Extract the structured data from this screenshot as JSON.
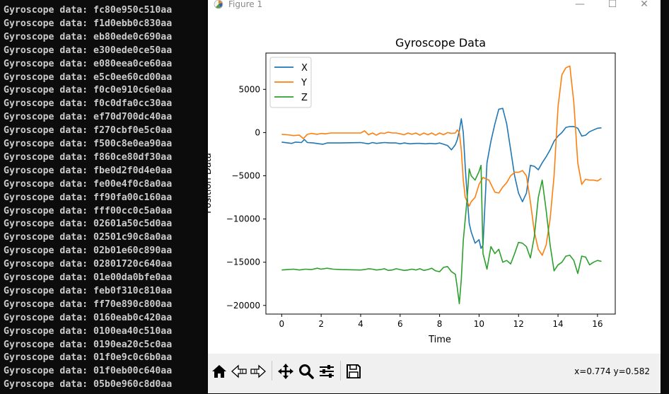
{
  "terminal": {
    "lines": [
      "Gyroscope data: fc80e950c510aa",
      "Gyroscope data: f1d0ebb0c830aa",
      "Gyroscope data: eb80ede0c690aa",
      "Gyroscope data: e300ede0ce50aa",
      "Gyroscope data: e080eea0ce60aa",
      "Gyroscope data: e5c0ee60cd00aa",
      "Gyroscope data: f0c0e910c6e0aa",
      "Gyroscope data: f0c0dfa0cc30aa",
      "Gyroscope data: ef70d700dc40aa",
      "Gyroscope data: f270cbf0e5c0aa",
      "Gyroscope data: f500c8e0ea90aa",
      "Gyroscope data: f860ce80df30aa",
      "Gyroscope data: fbe0d2f0d4e0aa",
      "Gyroscope data: fe00e4f0c8a0aa",
      "Gyroscope data: ff90fa00c160aa",
      "Gyroscope data: fff00cc0c5a0aa",
      "Gyroscope data: 02601a50c5d0aa",
      "Gyroscope data: 02501c90c8a0aa",
      "Gyroscope data: 02b01e60c890aa",
      "Gyroscope data: 02801720c640aa",
      "Gyroscope data: 01e00da0bfe0aa",
      "Gyroscope data: feb0f310c810aa",
      "Gyroscope data: ff70e890c800aa",
      "Gyroscope data: 0160eab0c420aa",
      "Gyroscope data: 0100ea40c510aa",
      "Gyroscope data: 0190ea20c5c0aa",
      "Gyroscope data: 01f0e9c0c6b0aa",
      "Gyroscope data: 01f0eb00c640aa",
      "Gyroscope data: 05b0e960c8d0aa"
    ]
  },
  "window": {
    "title": "Figure 1",
    "minimize_glyph": "—",
    "maximize_glyph": "☐",
    "close_glyph": "✕"
  },
  "toolbar": {
    "buttons": [
      "home-icon",
      "back-icon",
      "forward-icon",
      "pan-icon",
      "zoom-icon",
      "configure-subplots-icon",
      "save-icon"
    ],
    "coords": "x=0.774 y=0.582"
  },
  "chart_data": {
    "type": "line",
    "title": "Gyroscope Data",
    "xlabel": "Time",
    "ylabel": "Position Data",
    "xlim": [
      -0.8,
      16.9
    ],
    "ylim": [
      -21000,
      9200
    ],
    "xticks": [
      0,
      2,
      4,
      6,
      8,
      10,
      12,
      14,
      16
    ],
    "yticks": [
      -20000,
      -15000,
      -10000,
      -5000,
      0,
      5000
    ],
    "ytick_labels": [
      "−20000",
      "−15000",
      "−10000",
      "−5000",
      "0",
      "5000"
    ],
    "legend_position": "top-left",
    "grid": false,
    "series": [
      {
        "name": "X",
        "color": "#1f77b4",
        "x": [
          0,
          0.5,
          0.7,
          1.0,
          1.15,
          1.3,
          1.6,
          1.9,
          2.1,
          2.3,
          2.6,
          3.0,
          4.0,
          4.4,
          4.6,
          4.8,
          5.0,
          5.2,
          5.5,
          5.8,
          6.0,
          6.2,
          6.5,
          6.8,
          7.0,
          7.3,
          7.5,
          7.8,
          8.0,
          8.2,
          8.4,
          8.6,
          8.8,
          8.9,
          9.0,
          9.1,
          9.2,
          9.3,
          9.4,
          9.5,
          9.6,
          9.8,
          10.0,
          10.1,
          10.2,
          10.4,
          10.6,
          10.8,
          11.0,
          11.2,
          11.4,
          11.6,
          11.8,
          12.0,
          12.2,
          12.4,
          12.6,
          12.8,
          13.0,
          13.2,
          13.4,
          13.6,
          13.8,
          14.0,
          14.2,
          14.4,
          14.6,
          14.8,
          15.0,
          15.2,
          15.4,
          15.6,
          15.8,
          16.0,
          16.2
        ],
        "y": [
          -1100,
          -1250,
          -1100,
          -1150,
          -800,
          -1150,
          -1200,
          -1300,
          -1350,
          -1200,
          -1200,
          -1200,
          -1150,
          -1300,
          -1150,
          -1250,
          -1200,
          -1150,
          -1200,
          -1200,
          -1300,
          -1200,
          -1300,
          -1250,
          -1250,
          -1300,
          -1250,
          -1300,
          -1200,
          -1350,
          -1500,
          -2000,
          -1400,
          -800,
          200,
          1600,
          0,
          -4000,
          -7500,
          -10500,
          -11500,
          -12800,
          -12400,
          -13400,
          -13000,
          -3500,
          -1000,
          1000,
          2700,
          2800,
          1000,
          -2000,
          -5000,
          -7000,
          -8000,
          -7000,
          -3800,
          -3900,
          -4300,
          -3500,
          -2800,
          -2000,
          -1000,
          -400,
          0,
          600,
          700,
          700,
          500,
          -400,
          -300,
          100,
          300,
          500,
          550
        ]
      },
      {
        "name": "Y",
        "color": "#ff7f0e",
        "x": [
          0,
          0.3,
          0.6,
          0.9,
          1.1,
          1.3,
          1.5,
          1.8,
          2.0,
          2.2,
          2.5,
          2.8,
          3.0,
          4.0,
          4.2,
          4.4,
          4.6,
          4.8,
          5.0,
          5.2,
          5.4,
          5.6,
          5.8,
          6.0,
          6.2,
          6.4,
          6.6,
          6.8,
          7.0,
          7.2,
          7.4,
          7.6,
          7.8,
          8.0,
          8.2,
          8.4,
          8.6,
          8.8,
          8.9,
          9.0,
          9.1,
          9.2,
          9.3,
          9.4,
          9.5,
          9.6,
          9.8,
          10.0,
          10.2,
          10.5,
          10.8,
          11.0,
          11.2,
          11.4,
          11.6,
          11.8,
          12.0,
          12.2,
          12.4,
          12.6,
          12.8,
          13.0,
          13.2,
          13.4,
          13.6,
          13.8,
          14.0,
          14.2,
          14.4,
          14.6,
          14.8,
          15.0,
          15.2,
          15.4,
          15.6,
          15.8,
          16.0,
          16.2
        ],
        "y": [
          -200,
          -250,
          -350,
          -300,
          -700,
          -200,
          -100,
          -200,
          -100,
          -150,
          -50,
          -50,
          -50,
          -50,
          200,
          -250,
          -50,
          -300,
          -50,
          -100,
          50,
          -50,
          -50,
          -150,
          -250,
          -50,
          -200,
          -50,
          -300,
          -50,
          -250,
          -50,
          -300,
          -50,
          -250,
          0,
          -100,
          -50,
          300,
          0,
          -2000,
          -5500,
          -7500,
          -8000,
          -8500,
          -8000,
          -7500,
          -6000,
          -5200,
          -5500,
          -6900,
          -7000,
          -6300,
          -5800,
          -5000,
          -4600,
          -4600,
          -4400,
          -5000,
          -8000,
          -11500,
          -13500,
          -14200,
          -13000,
          -10000,
          -5000,
          3000,
          6700,
          7500,
          7700,
          3500,
          -3500,
          -6000,
          -5400,
          -5500,
          -5500,
          -5600,
          -5300
        ]
      },
      {
        "name": "Z",
        "color": "#2ca02c",
        "x": [
          0,
          0.3,
          0.6,
          0.9,
          1.2,
          1.5,
          1.8,
          2.0,
          2.3,
          2.6,
          3.0,
          4.0,
          4.2,
          4.4,
          4.6,
          4.8,
          5.0,
          5.2,
          5.4,
          5.6,
          5.8,
          6.0,
          6.2,
          6.4,
          6.6,
          6.8,
          7.0,
          7.2,
          7.4,
          7.6,
          7.8,
          8.0,
          8.2,
          8.4,
          8.6,
          8.8,
          8.9,
          9.0,
          9.1,
          9.2,
          9.4,
          9.5,
          9.6,
          9.8,
          10.0,
          10.1,
          10.2,
          10.4,
          10.6,
          10.8,
          11.0,
          11.2,
          11.4,
          11.6,
          11.8,
          12.0,
          12.2,
          12.4,
          12.6,
          12.8,
          13.0,
          13.2,
          13.4,
          13.6,
          13.8,
          14.0,
          14.2,
          14.4,
          14.6,
          14.8,
          15.0,
          15.2,
          15.4,
          15.6,
          15.8,
          16.0,
          16.2
        ],
        "y": [
          -15900,
          -15850,
          -15800,
          -15900,
          -15800,
          -15850,
          -15700,
          -15800,
          -15700,
          -15800,
          -15850,
          -15900,
          -15850,
          -15750,
          -15800,
          -15900,
          -15850,
          -15750,
          -15950,
          -15900,
          -15750,
          -15850,
          -15950,
          -15900,
          -15800,
          -15900,
          -15750,
          -15950,
          -15850,
          -15700,
          -16000,
          -16100,
          -15600,
          -15500,
          -16100,
          -16400,
          -18000,
          -19800,
          -17000,
          -12500,
          -7500,
          -4200,
          -5000,
          -5500,
          -4500,
          -3800,
          -14000,
          -15800,
          -13200,
          -14000,
          -13500,
          -15000,
          -14800,
          -15200,
          -14000,
          -12700,
          -12800,
          -13200,
          -14500,
          -12000,
          -7500,
          -5500,
          -9000,
          -13000,
          -16000,
          -15300,
          -15000,
          -14300,
          -14200,
          -14800,
          -16300,
          -14300,
          -14400,
          -15300,
          -15000,
          -14800,
          -14900
        ]
      }
    ]
  }
}
